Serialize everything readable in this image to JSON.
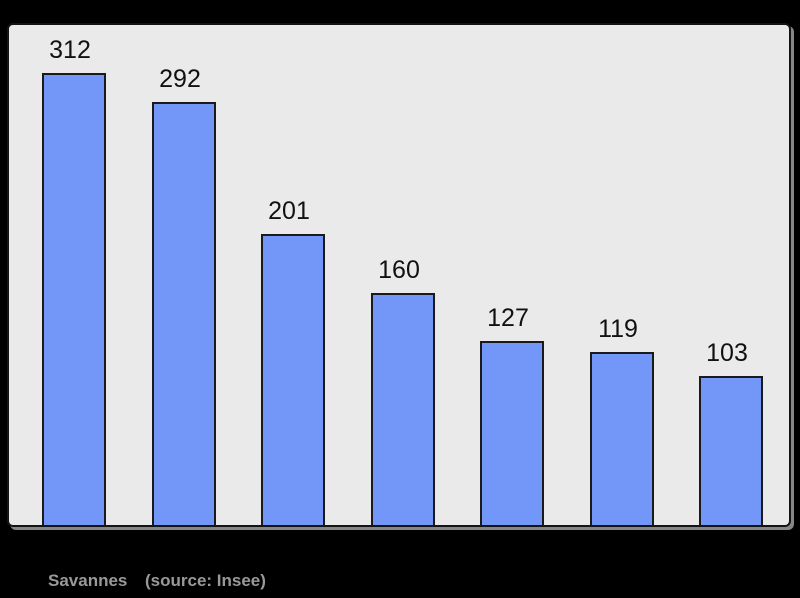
{
  "chart_data": {
    "type": "bar",
    "categories": [
      "",
      "",
      "",
      "",
      "",
      "",
      ""
    ],
    "values": [
      312,
      292,
      201,
      160,
      127,
      119,
      103
    ],
    "data_labels": [
      "312",
      "292",
      "201",
      "160",
      "127",
      "119",
      "103"
    ],
    "title": "",
    "xlabel": "",
    "ylabel": "",
    "ylim": [
      0,
      345
    ],
    "grid": false,
    "axes_visible": false,
    "legend": "none",
    "bar_color": "#7297f8",
    "bar_border_color": "#1a1a1a",
    "plot_background": "#eaeaea",
    "frame_border_color": "#141414",
    "shadow_color": "#868686",
    "page_background": "#000000",
    "value_label_color": "#111111",
    "caption": {
      "label": "Savannes",
      "source": "(source: Insee)",
      "color": "#999999"
    }
  }
}
